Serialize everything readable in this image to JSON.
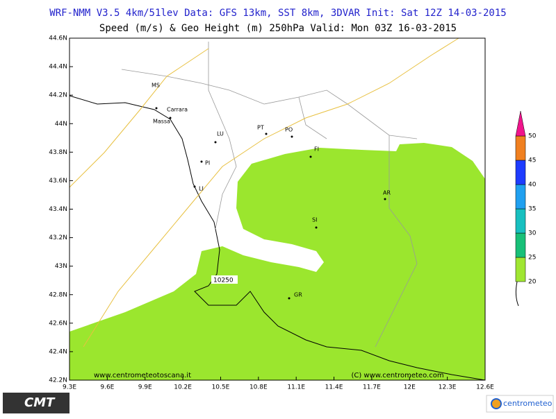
{
  "header": {
    "line1": "WRF-NMM V3.5 4km/51lev  Data: GFS 13km, SST 8km, 3DVAR  Init: Sat 12Z 14-03-2015",
    "line2": "Speed (m/s) & Geo Height (m) 250hPa  Valid: Mon 03Z 16-03-2015"
  },
  "map": {
    "xlim": [
      9.3,
      12.6
    ],
    "ylim": [
      42.2,
      44.6
    ],
    "xticks": [
      {
        "value": 9.3,
        "label": "9.3E"
      },
      {
        "value": 9.6,
        "label": "9.6E"
      },
      {
        "value": 9.9,
        "label": "9.9E"
      },
      {
        "value": 10.2,
        "label": "10.2E"
      },
      {
        "value": 10.5,
        "label": "10.5E"
      },
      {
        "value": 10.8,
        "label": "10.8E"
      },
      {
        "value": 11.1,
        "label": "11.1E"
      },
      {
        "value": 11.4,
        "label": "11.4E"
      },
      {
        "value": 11.7,
        "label": "11.7E"
      },
      {
        "value": 12,
        "label": "12E"
      },
      {
        "value": 12.3,
        "label": "12.3E"
      },
      {
        "value": 12.6,
        "label": "12.6E"
      }
    ],
    "yticks": [
      {
        "value": 42.2,
        "label": "42.2N"
      },
      {
        "value": 42.4,
        "label": "42.4N"
      },
      {
        "value": 42.6,
        "label": "42.6N"
      },
      {
        "value": 42.8,
        "label": "42.8N"
      },
      {
        "value": 43,
        "label": "43N"
      },
      {
        "value": 43.2,
        "label": "43.2N"
      },
      {
        "value": 43.4,
        "label": "43.4N"
      },
      {
        "value": 43.6,
        "label": "43.6N"
      },
      {
        "value": 43.8,
        "label": "43.8N"
      },
      {
        "value": 44,
        "label": "44N"
      },
      {
        "value": 44.2,
        "label": "44.2N"
      },
      {
        "value": 44.4,
        "label": "44.4N"
      },
      {
        "value": 44.6,
        "label": "44.6N"
      }
    ],
    "places": [
      "MS",
      "Carrara",
      "Massa",
      "LU",
      "PT",
      "PO",
      "FI",
      "PI",
      "LI",
      "AR",
      "SI",
      "GR"
    ],
    "contour_label": "10250",
    "credits": [
      "www.centrometeotoscana.it",
      "(C) www.centrometeo.com"
    ]
  },
  "colorbar": {
    "levels": [
      20,
      25,
      30,
      35,
      40,
      45,
      50
    ],
    "colors": [
      "#a0e632",
      "#18c078",
      "#18c0c0",
      "#20a0f0",
      "#1e3cff",
      "#f08020",
      "#f0148c"
    ]
  },
  "footer": {
    "logo_left": "CMT",
    "logo_right": "centrometeo"
  }
}
